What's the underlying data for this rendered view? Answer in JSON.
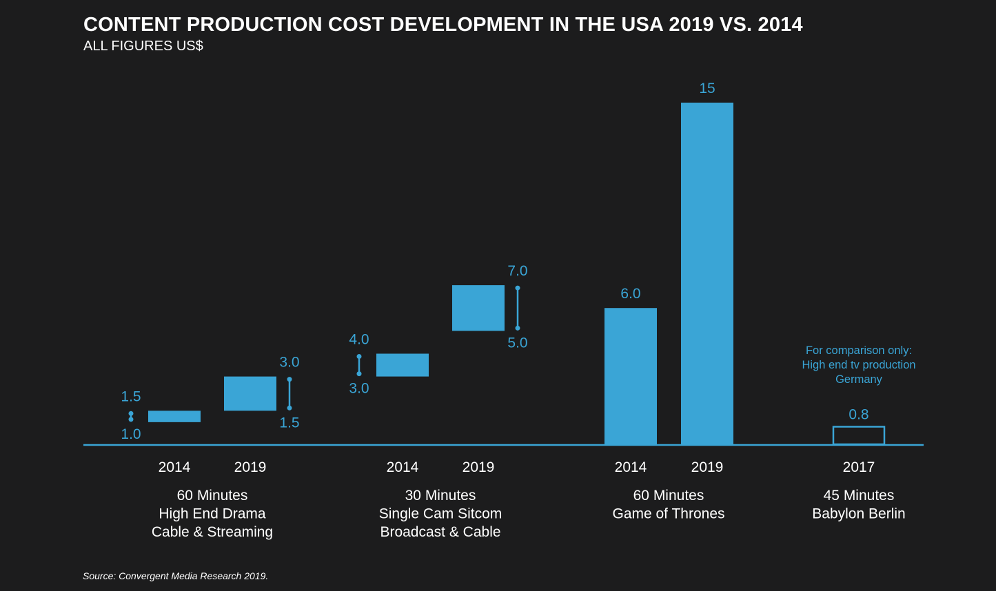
{
  "title": "CONTENT PRODUCTION COST DEVELOPMENT IN THE USA 2019 VS. 2014",
  "subtitle": "ALL FIGURES US$",
  "source": "Source: Convergent Media Research 2019.",
  "colors": {
    "background": "#1c1c1d",
    "bar": "#3aa5d6",
    "value_text": "#3aa5d6",
    "axis_text": "#ffffff"
  },
  "chart_data": {
    "type": "bar",
    "unit": "US$",
    "ylim": [
      0,
      15.5
    ],
    "grid": false,
    "groups": [
      {
        "labels": [
          "60 Minutes",
          "High End Drama",
          "Cable & Streaming"
        ],
        "bars": [
          {
            "year": "2014",
            "kind": "range",
            "low": 1.0,
            "high": 1.5,
            "low_label": "1.0",
            "high_label": "1.5"
          },
          {
            "year": "2019",
            "kind": "range",
            "low": 1.5,
            "high": 3.0,
            "low_label": "1.5",
            "high_label": "3.0"
          }
        ]
      },
      {
        "labels": [
          "30 Minutes",
          "Single Cam Sitcom",
          "Broadcast & Cable"
        ],
        "bars": [
          {
            "year": "2014",
            "kind": "range",
            "low": 3.0,
            "high": 4.0,
            "low_label": "3.0",
            "high_label": "4.0"
          },
          {
            "year": "2019",
            "kind": "range",
            "low": 5.0,
            "high": 7.0,
            "low_label": "5.0",
            "high_label": "7.0"
          }
        ]
      },
      {
        "labels": [
          "60 Minutes",
          "Game of Thrones"
        ],
        "bars": [
          {
            "year": "2014",
            "kind": "value",
            "value": 6.0,
            "label": "6.0"
          },
          {
            "year": "2019",
            "kind": "value",
            "value": 15,
            "label": "15"
          }
        ]
      },
      {
        "labels": [
          "45 Minutes",
          "Babylon Berlin"
        ],
        "note": [
          "For comparison only:",
          "High end tv production",
          "Germany"
        ],
        "bars": [
          {
            "year": "2017",
            "kind": "outline",
            "value": 0.8,
            "label": "0.8"
          }
        ]
      }
    ]
  }
}
